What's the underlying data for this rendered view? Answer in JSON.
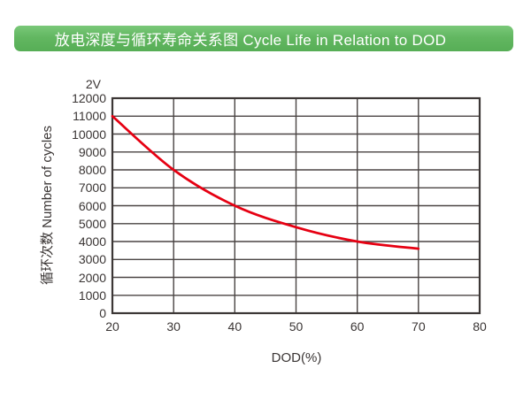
{
  "banner": {
    "title": "放电深度与循环寿命关系图 Cycle Life in Relation to DOD",
    "bg_top": "#7ac879",
    "bg_bottom": "#57ae56",
    "text_color": "#ffffff"
  },
  "chart_data": {
    "type": "line",
    "title": "放电深度与循环寿命关系图 Cycle Life in Relation to DOD",
    "annotation": "2V",
    "x": [
      20,
      30,
      40,
      50,
      60,
      70
    ],
    "values": [
      11000,
      8000,
      6000,
      4800,
      4000,
      3600
    ],
    "series": [
      {
        "name": "2V",
        "x": [
          20,
          30,
          40,
          50,
          60,
          70
        ],
        "values": [
          11000,
          8000,
          6000,
          4800,
          4000,
          3600
        ]
      }
    ],
    "xlabel": "DOD(%)",
    "ylabel": "循环次数 Number of cycles",
    "xlim": [
      20,
      80
    ],
    "ylim": [
      0,
      12000
    ],
    "x_ticks": [
      20,
      30,
      40,
      50,
      60,
      70,
      80
    ],
    "y_ticks": [
      0,
      1000,
      2000,
      3000,
      4000,
      5000,
      6000,
      7000,
      8000,
      9000,
      10000,
      11000,
      12000
    ],
    "grid": "on",
    "legend_position": "none",
    "line_color": "#e60012",
    "grid_color": "#4a4443",
    "frame_color": "#3c3736",
    "text_color": "#3a3534"
  }
}
